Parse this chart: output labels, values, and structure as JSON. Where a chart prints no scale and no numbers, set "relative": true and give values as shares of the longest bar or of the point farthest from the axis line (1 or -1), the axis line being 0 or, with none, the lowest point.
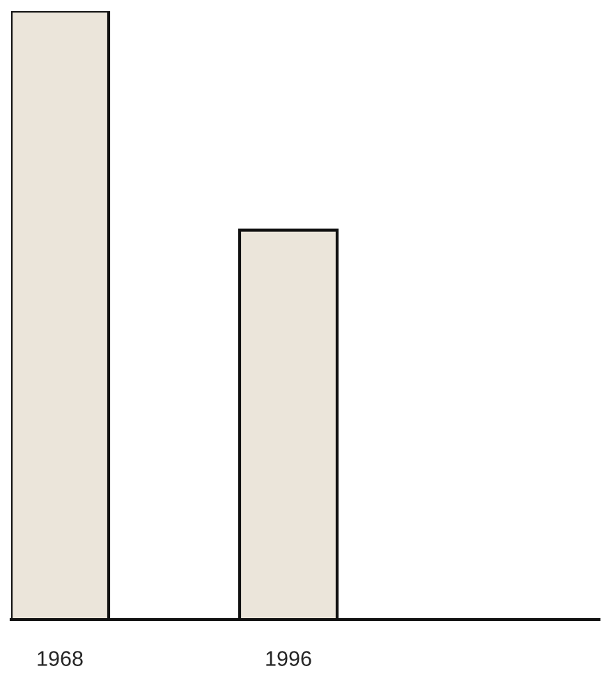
{
  "chart_data": {
    "type": "bar",
    "categories": [
      "1968",
      "1996"
    ],
    "relative": true,
    "values": [
      1,
      0.64
    ],
    "color": "#ebe5da",
    "grid": false,
    "legend": false
  }
}
